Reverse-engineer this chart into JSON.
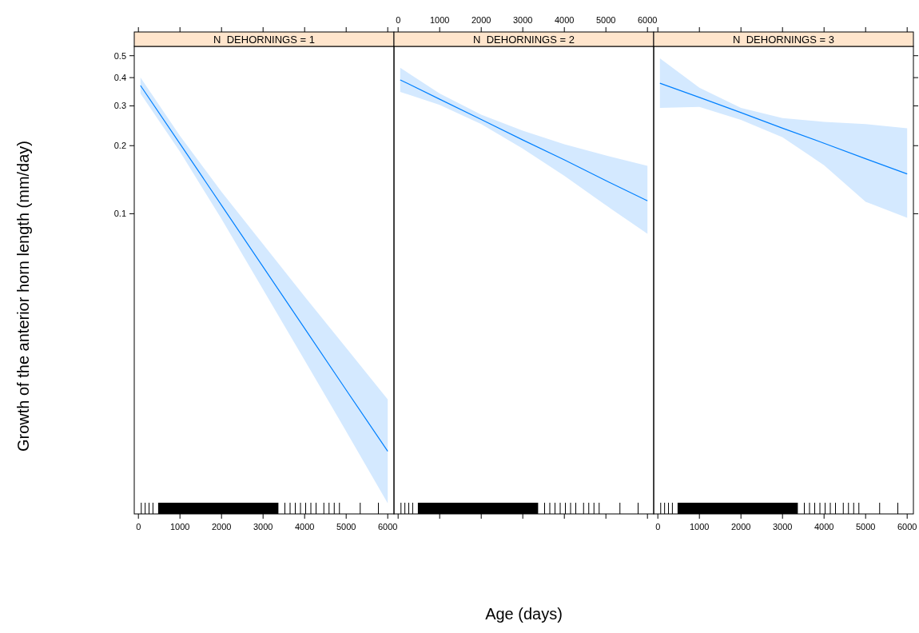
{
  "chart_data": [
    {
      "type": "line",
      "title": "N  DEHORNINGS = 1",
      "ylabel": "Growth of the anterior horn length (mm/day)",
      "log": true,
      "xlim": [
        -100,
        6150
      ],
      "xticks": [
        0,
        1000,
        2000,
        3000,
        4000,
        5000,
        6000
      ],
      "ylim": [
        0.0047,
        0.55
      ],
      "yticks": [
        0.1,
        0.2,
        0.3,
        0.4,
        0.5
      ],
      "series": [
        {
          "color": "#0080ff",
          "x": [
            50,
            1000,
            2000,
            3000,
            4000,
            5000,
            6000
          ],
          "values": [
            0.369,
            0.204,
            0.109,
            0.0582,
            0.0311,
            0.0166,
            0.0089
          ],
          "lower": [
            0.34,
            0.188,
            0.0948,
            0.0462,
            0.0225,
            0.0109,
            0.00524
          ],
          "upper": [
            0.4,
            0.221,
            0.125,
            0.0733,
            0.043,
            0.0255,
            0.0151
          ]
        }
      ]
    },
    {
      "type": "line",
      "title": "N  DEHORNINGS = 2",
      "xlabel": "Age (days)",
      "log": true,
      "tick_labels": "x",
      "xlim": [
        -100,
        6150
      ],
      "xticks": [
        0,
        1000,
        2000,
        3000,
        4000,
        5000,
        6000
      ],
      "ylim": [
        0.0047,
        0.55
      ],
      "yticks": [
        0.1,
        0.2,
        0.3,
        0.4,
        0.5
      ],
      "series": [
        {
          "color": "#0080ff",
          "x": [
            50,
            1000,
            2000,
            3000,
            4000,
            5000,
            6000
          ],
          "values": [
            0.391,
            0.321,
            0.261,
            0.212,
            0.173,
            0.14,
            0.114
          ],
          "lower": [
            0.346,
            0.303,
            0.249,
            0.194,
            0.147,
            0.109,
            0.0815
          ],
          "upper": [
            0.442,
            0.34,
            0.274,
            0.233,
            0.203,
            0.181,
            0.163
          ]
        }
      ]
    },
    {
      "type": "line",
      "title": "N  DEHORNINGS = 3",
      "log": true,
      "tick_labels": "x",
      "xlim": [
        -100,
        6150
      ],
      "xticks": [
        0,
        1000,
        2000,
        3000,
        4000,
        5000,
        6000
      ],
      "ylim": [
        0.0047,
        0.55
      ],
      "yticks": [
        0.1,
        0.2,
        0.3,
        0.4,
        0.5
      ],
      "series": [
        {
          "color": "#0080ff",
          "x": [
            50,
            1000,
            2000,
            3000,
            4000,
            5000,
            6000
          ],
          "values": [
            0.378,
            0.327,
            0.28,
            0.239,
            0.205,
            0.175,
            0.15
          ],
          "lower": [
            0.294,
            0.297,
            0.26,
            0.218,
            0.164,
            0.113,
            0.096
          ],
          "upper": [
            0.487,
            0.361,
            0.294,
            0.265,
            0.255,
            0.249,
            0.239
          ]
        }
      ]
    }
  ]
}
